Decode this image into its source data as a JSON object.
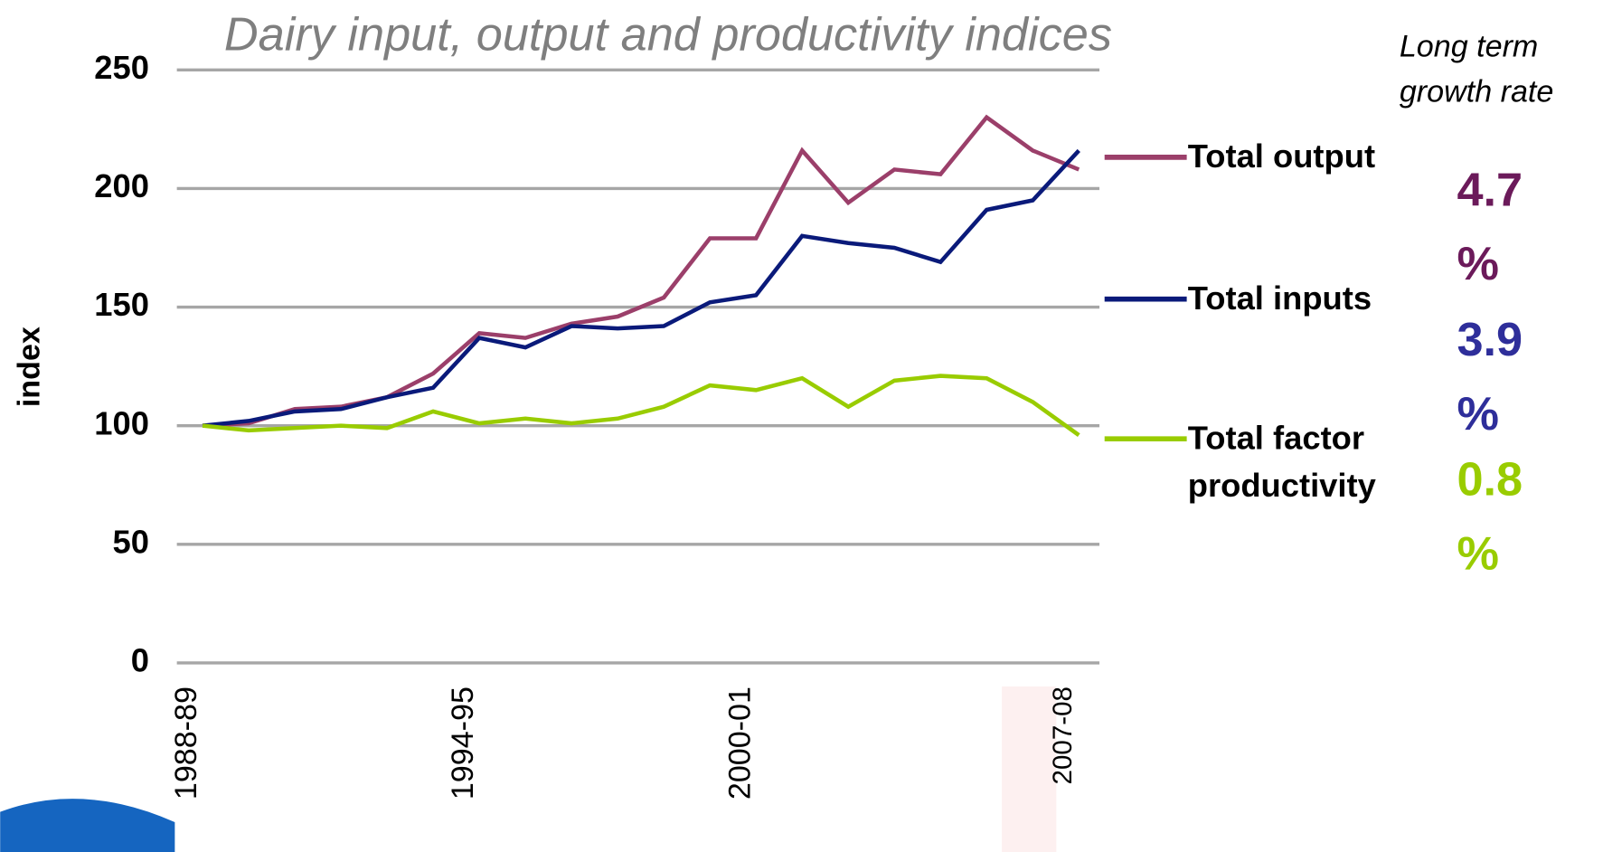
{
  "chart_data": {
    "type": "line",
    "title": "Dairy input, output and productivity indices",
    "y_label": "index",
    "categories": [
      "1988-89",
      null,
      null,
      null,
      null,
      null,
      "1994-95",
      null,
      null,
      null,
      null,
      null,
      "2000-01",
      null,
      null,
      null,
      null,
      null,
      null,
      "2007-08"
    ],
    "series": [
      {
        "name": "Total output",
        "color": "#9b3f6a",
        "values": [
          100,
          101,
          107,
          108,
          112,
          122,
          139,
          137,
          143,
          146,
          154,
          179,
          179,
          216,
          194,
          208,
          206,
          230,
          216,
          208
        ]
      },
      {
        "name": "Total inputs",
        "color": "#0a1a7a",
        "values": [
          100,
          102,
          106,
          107,
          112,
          116,
          137,
          133,
          142,
          141,
          142,
          152,
          155,
          180,
          177,
          175,
          169,
          191,
          195,
          216
        ]
      },
      {
        "name": "Total factor productivity",
        "color": "#99cc00",
        "values": [
          100,
          98,
          99,
          100,
          99,
          106,
          101,
          103,
          101,
          103,
          108,
          117,
          115,
          120,
          108,
          119,
          121,
          120,
          110,
          96
        ]
      }
    ],
    "ylim": [
      0,
      250
    ],
    "yticks": [
      0,
      50,
      100,
      150,
      200,
      250
    ],
    "grid": true,
    "growth_rate_label": "Long term growth rate",
    "growth_rates": [
      "4.7 %",
      "3.9 %",
      "0.8 %"
    ],
    "growth_rate_colors": [
      "#6b1a5a",
      "#2e2e9a",
      "#99cc00"
    ]
  }
}
